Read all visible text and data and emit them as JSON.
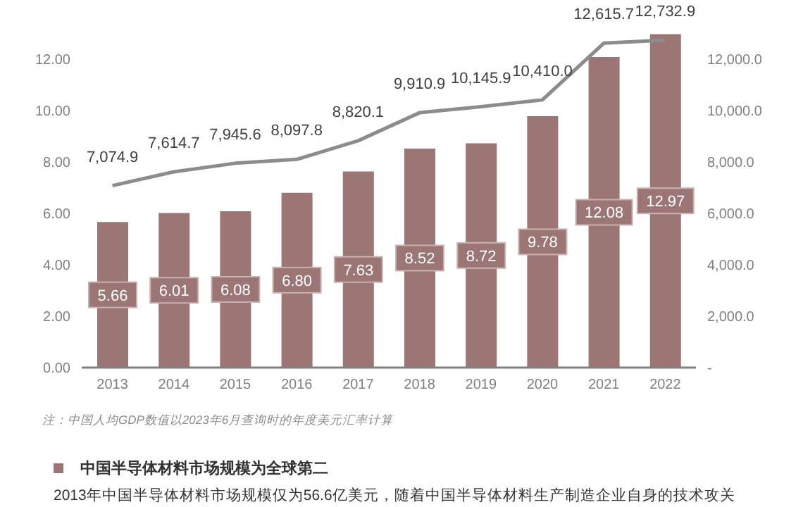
{
  "chart_data": {
    "type": "bar",
    "categories": [
      "2013",
      "2014",
      "2015",
      "2016",
      "2017",
      "2018",
      "2019",
      "2020",
      "2021",
      "2022"
    ],
    "series": [
      {
        "axis": "y",
        "color": "#9b7674",
        "values": [
          5.66,
          6.01,
          6.08,
          6.8,
          7.63,
          8.52,
          8.72,
          9.78,
          12.08,
          12.97
        ],
        "value_labels": [
          "5.66",
          "6.01",
          "6.08",
          "6.80",
          "7.63",
          "8.52",
          "8.72",
          "9.78",
          "12.08",
          "12.97"
        ]
      },
      {
        "type": "line",
        "axis": "y2",
        "color": "#8c8c8c",
        "values": [
          7074.9,
          7614.7,
          7945.6,
          8097.8,
          8820.1,
          9910.9,
          10145.9,
          10410.0,
          12615.7,
          12732.9
        ],
        "value_labels": [
          "7,074.9",
          "7,614.7",
          "7,945.6",
          "8,097.8",
          "8,820.1",
          "9,910.9",
          "10,145.9",
          "10,410.0",
          "12,615.7",
          "12,732.9"
        ]
      }
    ],
    "ylim": [
      0,
      13.2
    ],
    "yticks": [
      {
        "value": 0,
        "label": "0.00"
      },
      {
        "value": 2,
        "label": "2.00"
      },
      {
        "value": 4,
        "label": "4.00"
      },
      {
        "value": 6,
        "label": "6.00"
      },
      {
        "value": 8,
        "label": "8.00"
      },
      {
        "value": 10,
        "label": "10.00"
      },
      {
        "value": 12,
        "label": "12.00"
      }
    ],
    "y2lim": [
      0,
      13200
    ],
    "y2ticks": [
      {
        "value": 0,
        "label": "-"
      },
      {
        "value": 2000,
        "label": "2,000.0"
      },
      {
        "value": 4000,
        "label": "4,000.0"
      },
      {
        "value": 6000,
        "label": "6,000.0"
      },
      {
        "value": 8000,
        "label": "8,000.0"
      },
      {
        "value": 10000,
        "label": "10,000.0"
      },
      {
        "value": 12000,
        "label": "12,000.0"
      }
    ],
    "grid": false,
    "legend": false,
    "marker": "none",
    "annotations": [
      "注：中国人均GDP数值以2023年6月查询时的年度美元汇率计算",
      "中国半导体材料市场规模为全球第二",
      "2013年中国半导体材料市场规模仅为56.6亿美元，随着中国半导体材料生产制造企业自身的技术攻关"
    ]
  }
}
